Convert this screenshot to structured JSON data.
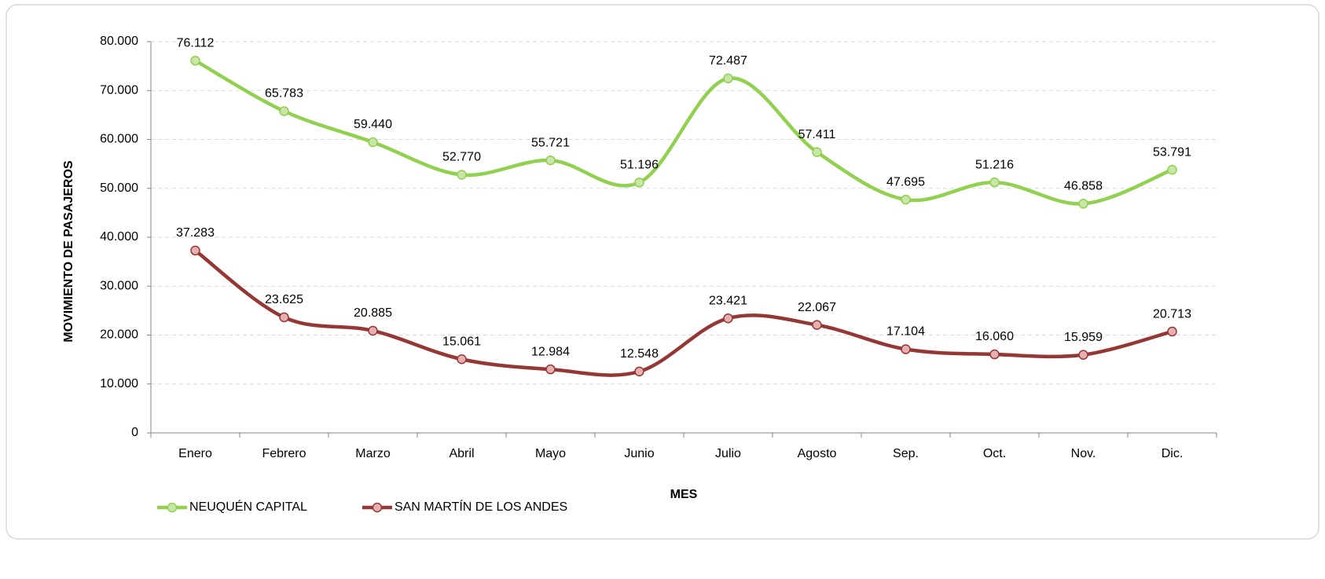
{
  "chart_data": {
    "type": "line",
    "x_label": "MES",
    "y_label": "MOVIMIENTO DE PASAJEROS",
    "categories": [
      "Enero",
      "Febrero",
      "Marzo",
      "Abril",
      "Mayo",
      "Junio",
      "Julio",
      "Agosto",
      "Sep.",
      "Oct.",
      "Nov.",
      "Dic."
    ],
    "series": [
      {
        "name": "NEUQUÉN CAPITAL",
        "color": "#92d050",
        "marker_color": "#c9e5a8",
        "values": [
          76112,
          65783,
          59440,
          52770,
          55721,
          51196,
          72487,
          57411,
          47695,
          51216,
          46858,
          53791
        ],
        "value_labels": [
          "76.112",
          "65.783",
          "59.440",
          "52.770",
          "55.721",
          "51.196",
          "72.487",
          "57.411",
          "47.695",
          "51.216",
          "46.858",
          "53.791"
        ]
      },
      {
        "name": "SAN MARTÍN DE LOS ANDES",
        "color": "#953735",
        "marker_color": "#e6b0b0",
        "values": [
          37283,
          23625,
          20885,
          15061,
          12984,
          12548,
          23421,
          22067,
          17104,
          16060,
          15959,
          20713
        ],
        "value_labels": [
          "37.283",
          "23.625",
          "20.885",
          "15.061",
          "12.984",
          "12.548",
          "23.421",
          "22.067",
          "17.104",
          "16.060",
          "15.959",
          "20.713"
        ]
      }
    ],
    "ylim": [
      0,
      80000
    ],
    "yticks": [
      0,
      {
        "value": 10000,
        "label": "10.000"
      },
      {
        "value": 20000,
        "label": "20.000"
      },
      {
        "value": 30000,
        "label": "30.000"
      },
      {
        "value": 40000,
        "label": "40.000"
      },
      {
        "value": 50000,
        "label": "50.000"
      },
      {
        "value": 60000,
        "label": "60.000"
      },
      {
        "value": 70000,
        "label": "70.000"
      },
      {
        "value": 80000,
        "label": "80.000"
      }
    ],
    "grid": true,
    "legend": "bottom-left",
    "smooth": true
  }
}
